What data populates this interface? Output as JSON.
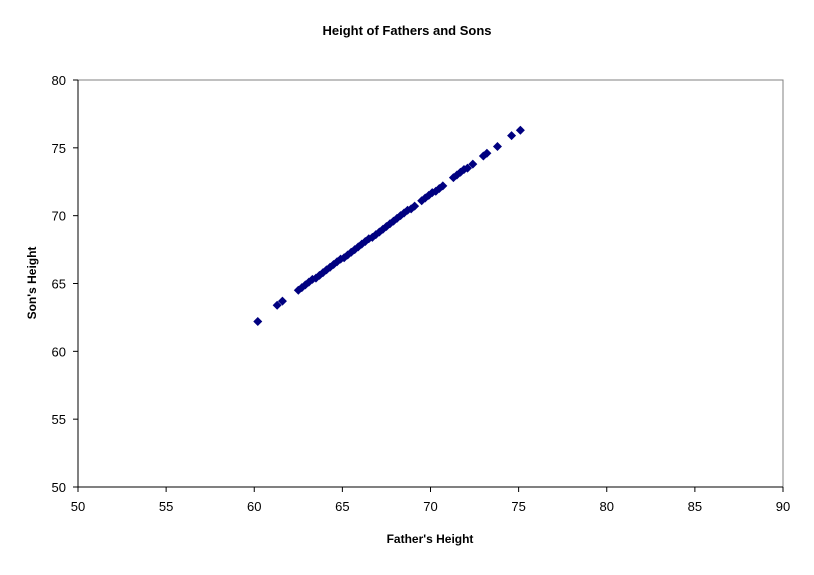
{
  "colors": {
    "marker": "#000080",
    "plot_border": "#808080",
    "axis": "#000000",
    "background": "#ffffff"
  },
  "chart_data": {
    "type": "scatter",
    "title": "Height of Fathers and Sons",
    "xlabel": "Father's Height",
    "ylabel": "Son's Height",
    "xlim": [
      50,
      90
    ],
    "ylim": [
      50,
      80
    ],
    "xticks": [
      "50",
      "55",
      "60",
      "65",
      "70",
      "75",
      "80",
      "85",
      "90"
    ],
    "yticks": [
      "50",
      "55",
      "60",
      "65",
      "70",
      "75",
      "80"
    ],
    "grid": false,
    "legend": "none",
    "marker": "diamond",
    "series": [
      {
        "x": [
          60.2,
          61.3,
          61.6,
          62.5,
          62.7,
          62.9,
          63.1,
          63.3,
          63.5,
          63.7,
          63.9,
          64.1,
          64.3,
          64.5,
          64.7,
          64.9,
          65.1,
          65.3,
          65.5,
          65.7,
          65.9,
          66.1,
          66.3,
          66.5,
          66.7,
          66.9,
          67.1,
          67.3,
          67.5,
          67.7,
          67.9,
          68.1,
          68.3,
          68.5,
          68.7,
          68.9,
          69.1,
          69.5,
          69.7,
          69.9,
          70.1,
          70.3,
          70.5,
          70.7,
          71.3,
          71.5,
          71.7,
          71.9,
          72.1,
          72.4,
          73.0,
          73.2,
          73.8,
          74.6,
          75.1
        ],
        "y": [
          62.2,
          63.4,
          63.7,
          64.5,
          64.7,
          64.9,
          65.1,
          65.3,
          65.4,
          65.6,
          65.8,
          66.0,
          66.2,
          66.4,
          66.6,
          66.8,
          66.9,
          67.1,
          67.3,
          67.5,
          67.7,
          67.9,
          68.1,
          68.3,
          68.4,
          68.6,
          68.8,
          69.0,
          69.2,
          69.4,
          69.6,
          69.8,
          70.0,
          70.2,
          70.4,
          70.5,
          70.7,
          71.1,
          71.3,
          71.5,
          71.7,
          71.8,
          72.0,
          72.2,
          72.8,
          73.0,
          73.2,
          73.4,
          73.5,
          73.8,
          74.4,
          74.6,
          75.1,
          75.9,
          76.3
        ]
      }
    ]
  }
}
